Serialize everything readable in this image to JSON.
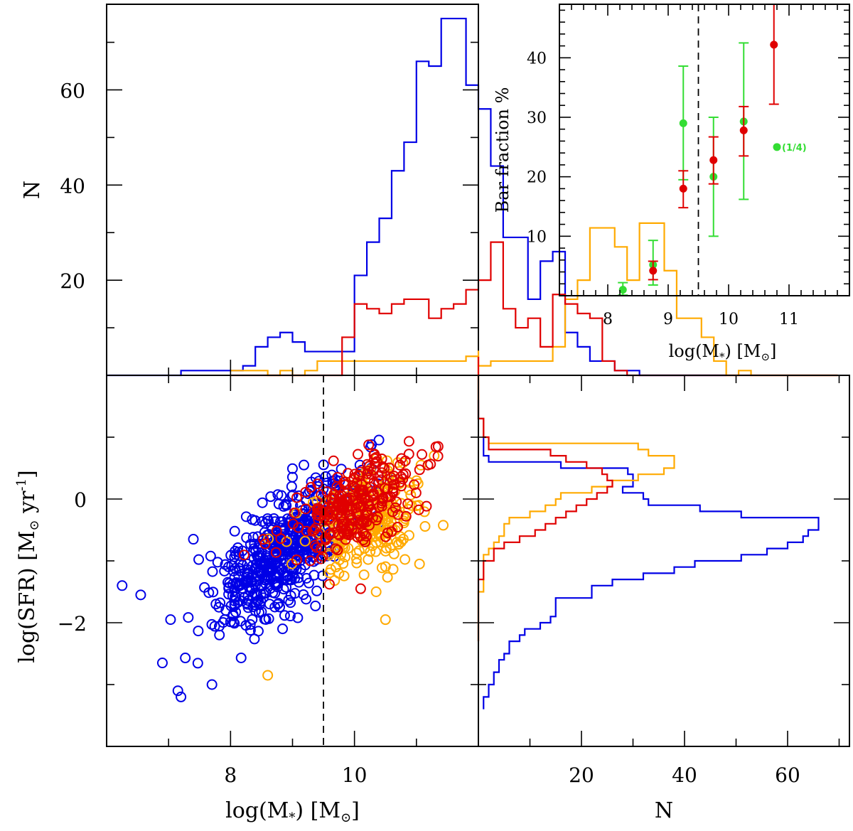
{
  "chart_data": [
    {
      "id": "hist_mass",
      "type": "histogram",
      "ylabel": "N",
      "yticks": [
        20,
        40,
        60
      ],
      "xlim": [
        6.0,
        12.0
      ],
      "ylim": [
        0,
        78
      ],
      "bin_width": 0.2,
      "series": [
        {
          "color": "#0000e6",
          "bins_start": 6.0,
          "counts": [
            0,
            0,
            0,
            0,
            0,
            0,
            1,
            1,
            1,
            1,
            1,
            2,
            6,
            8,
            9,
            7,
            5,
            5,
            5,
            5,
            21,
            28,
            33,
            43,
            49,
            66,
            65,
            75,
            75,
            61,
            56,
            44,
            29,
            29,
            16,
            24,
            26,
            9,
            6,
            3,
            3,
            1,
            1,
            0,
            0,
            0,
            0,
            0,
            0,
            0
          ]
        },
        {
          "color": "#ffaa00",
          "bins_start": 8.0,
          "counts": [
            1,
            1,
            1,
            0,
            1,
            0,
            1,
            3,
            3,
            3,
            3,
            3,
            3,
            3,
            3,
            3,
            3,
            3,
            3,
            4,
            2,
            3,
            3,
            3,
            3,
            3,
            6,
            16,
            20,
            31,
            31,
            27,
            20,
            32,
            32,
            22,
            12,
            12,
            8,
            3,
            0,
            1,
            0,
            0,
            0,
            0,
            0,
            0,
            0
          ]
        },
        {
          "color": "#e00000",
          "bins_start": 8.0,
          "counts": [
            0,
            0,
            0,
            0,
            0,
            0,
            0,
            0,
            0,
            8,
            15,
            14,
            13,
            15,
            16,
            16,
            12,
            14,
            15,
            18,
            20,
            28,
            14,
            10,
            12,
            6,
            17,
            15,
            13,
            12,
            3,
            1,
            0,
            0,
            0,
            0,
            0,
            0,
            0,
            0,
            0,
            0,
            0,
            0,
            0,
            0,
            0,
            0,
            0
          ]
        }
      ]
    },
    {
      "id": "bar_fraction",
      "type": "scatter",
      "xlabel": "log(M",
      "xlabel_sub": "*",
      "xlabel_unit": "M",
      "ylabel": "Bar fraction %",
      "xticks": [
        8,
        9,
        10,
        11
      ],
      "yticks": [
        10,
        20,
        30,
        40
      ],
      "xlim": [
        7.2,
        12.0
      ],
      "ylim": [
        0,
        49
      ],
      "vline": 9.5,
      "annotation": {
        "text": "(1/4)",
        "x": 10.8,
        "y": 25
      },
      "series": [
        {
          "color": "#33dd33",
          "points": [
            {
              "x": 8.25,
              "y": 1.0,
              "lo": 0.1,
              "hi": 2.2
            },
            {
              "x": 8.75,
              "y": 5.2,
              "lo": 1.8,
              "hi": 9.3
            },
            {
              "x": 9.25,
              "y": 29.0,
              "lo": 19.5,
              "hi": 38.6
            },
            {
              "x": 9.75,
              "y": 20.0,
              "lo": 10.0,
              "hi": 30.0
            },
            {
              "x": 10.25,
              "y": 29.3,
              "lo": 16.2,
              "hi": 42.5
            },
            {
              "x": 10.8,
              "y": 25.0,
              "lo": null,
              "hi": null
            }
          ]
        },
        {
          "color": "#e00000",
          "points": [
            {
              "x": 8.75,
              "y": 4.2,
              "lo": 2.7,
              "hi": 5.8
            },
            {
              "x": 9.25,
              "y": 18.0,
              "lo": 14.8,
              "hi": 21.0
            },
            {
              "x": 9.75,
              "y": 22.8,
              "lo": 18.8,
              "hi": 26.7
            },
            {
              "x": 10.25,
              "y": 27.8,
              "lo": 23.5,
              "hi": 31.8
            },
            {
              "x": 10.75,
              "y": 42.2,
              "lo": 32.2,
              "hi": 49.0
            }
          ]
        }
      ]
    },
    {
      "id": "sfr_mass",
      "type": "scatter",
      "xlabel": "log(M",
      "xlabel_sub": "*",
      "xlabel_unit": "M",
      "ylabel": "log(SFR)  [M",
      "ylabel_unit": " yr",
      "ylabel_sup": "-1",
      "xticks": [
        8,
        10
      ],
      "yticks": [
        -2,
        0
      ],
      "xlim": [
        6.0,
        12.0
      ],
      "ylim": [
        -4.0,
        2.0
      ],
      "vline": 9.5,
      "series": [
        {
          "color": "#0000e6",
          "center_x": 8.8,
          "center_y": -0.9,
          "slope": 0.75,
          "spread_x": 0.55,
          "spread_y": 0.45,
          "n": 560,
          "seed": 11
        },
        {
          "color": "#ffaa00",
          "center_x": 10.2,
          "center_y": -0.3,
          "slope": 0.35,
          "spread_x": 0.45,
          "spread_y": 0.4,
          "n": 250,
          "seed": 23
        },
        {
          "color": "#e00000",
          "center_x": 10.0,
          "center_y": -0.1,
          "slope": 0.45,
          "spread_x": 0.5,
          "spread_y": 0.35,
          "n": 270,
          "seed": 37
        }
      ],
      "outliers": [
        {
          "color": "#0000e6",
          "x": 6.25,
          "y": -1.4
        },
        {
          "color": "#0000e6",
          "x": 6.55,
          "y": -1.55
        },
        {
          "color": "#0000e6",
          "x": 6.9,
          "y": -2.65
        },
        {
          "color": "#0000e6",
          "x": 7.2,
          "y": -3.2
        },
        {
          "color": "#0000e6",
          "x": 7.15,
          "y": -3.1
        },
        {
          "color": "#0000e6",
          "x": 7.4,
          "y": -0.65
        },
        {
          "color": "#0000e6",
          "x": 7.7,
          "y": -3.0
        },
        {
          "color": "#ffaa00",
          "x": 8.6,
          "y": -2.85
        },
        {
          "color": "#ffaa00",
          "x": 10.5,
          "y": -1.95
        },
        {
          "color": "#ffaa00",
          "x": 11.05,
          "y": -1.05
        },
        {
          "color": "#ffaa00",
          "x": 10.35,
          "y": -1.5
        },
        {
          "color": "#e00000",
          "x": 11.35,
          "y": 0.85
        },
        {
          "color": "#e00000",
          "x": 10.1,
          "y": -1.45
        }
      ]
    },
    {
      "id": "hist_sfr",
      "type": "histogram",
      "orientation": "horizontal",
      "xlabel": "N",
      "xticks": [
        20,
        40,
        60
      ],
      "xlim": [
        0,
        72
      ],
      "ylim": [
        -4.0,
        2.0
      ],
      "bin_width": 0.1,
      "series": [
        {
          "color": "#0000e6",
          "bins_start": -3.4,
          "counts": [
            1,
            1,
            2,
            2,
            3,
            3,
            4,
            4,
            5,
            6,
            6,
            8,
            9,
            12,
            14,
            15,
            15,
            15,
            22,
            22,
            26,
            32,
            38,
            42,
            51,
            56,
            60,
            63,
            64,
            66,
            66,
            51,
            43,
            33,
            32,
            28,
            30,
            30,
            29,
            16,
            2,
            1,
            1,
            1,
            1,
            1,
            1,
            0,
            0,
            0
          ]
        },
        {
          "color": "#ffaa00",
          "bins_start": -2.3,
          "counts": [
            0,
            0,
            0,
            0,
            0,
            0,
            0,
            0,
            1,
            1,
            1,
            1,
            1,
            1,
            2,
            3,
            4,
            5,
            5,
            6,
            10,
            13,
            15,
            16,
            22,
            26,
            31,
            36,
            38,
            38,
            33,
            31,
            2,
            1,
            1,
            1,
            0,
            0,
            0,
            0,
            0,
            0,
            0,
            0,
            0,
            0,
            0
          ]
        },
        {
          "color": "#e00000",
          "bins_start": -2.3,
          "counts": [
            0,
            0,
            0,
            0,
            0,
            0,
            0,
            0,
            0,
            0,
            1,
            1,
            1,
            3,
            3,
            5,
            8,
            11,
            13,
            15,
            17,
            19,
            21,
            23,
            25,
            26,
            25,
            24,
            21,
            17,
            14,
            2,
            2,
            1,
            1,
            1,
            0,
            0,
            0,
            0,
            0,
            0,
            0,
            0,
            0,
            0
          ]
        }
      ]
    }
  ]
}
